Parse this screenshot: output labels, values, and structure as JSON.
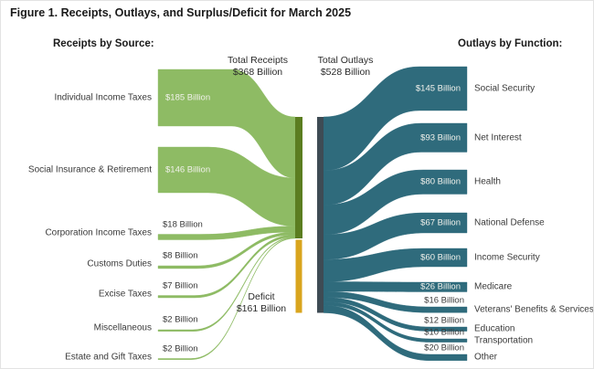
{
  "chart_data": {
    "type": "sankey",
    "title": "Figure 1. Receipts, Outlays, and Surplus/Deficit for March 2025",
    "left_header": "Receipts by Source:",
    "right_header": "Outlays by Function:",
    "totals": {
      "receipts": {
        "label": "Total Receipts",
        "value": 368,
        "value_label": "$368 Billion"
      },
      "outlays": {
        "label": "Total Outlays",
        "value": 528,
        "value_label": "$528 Billion"
      },
      "deficit": {
        "label": "Deficit",
        "value": 161,
        "value_label": "$161 Billion"
      }
    },
    "receipts_by_source": [
      {
        "name": "Individual Income Taxes",
        "value": 185,
        "value_label": "$185 Billion"
      },
      {
        "name": "Social Insurance & Retirement",
        "value": 146,
        "value_label": "$146 Billion"
      },
      {
        "name": "Corporation Income Taxes",
        "value": 18,
        "value_label": "$18 Billion"
      },
      {
        "name": "Customs Duties",
        "value": 8,
        "value_label": "$8 Billion"
      },
      {
        "name": "Excise Taxes",
        "value": 7,
        "value_label": "$7 Billion"
      },
      {
        "name": "Miscellaneous",
        "value": 2,
        "value_label": "$2 Billion"
      },
      {
        "name": "Estate and Gift Taxes",
        "value": 2,
        "value_label": "$2 Billion"
      }
    ],
    "outlays_by_function": [
      {
        "name": "Social Security",
        "value": 145,
        "value_label": "$145 Billion"
      },
      {
        "name": "Net Interest",
        "value": 93,
        "value_label": "$93 Billion"
      },
      {
        "name": "Health",
        "value": 80,
        "value_label": "$80 Billion"
      },
      {
        "name": "National Defense",
        "value": 67,
        "value_label": "$67 Billion"
      },
      {
        "name": "Income Security",
        "value": 60,
        "value_label": "$60 Billion"
      },
      {
        "name": "Medicare",
        "value": 26,
        "value_label": "$26 Billion"
      },
      {
        "name": "Veterans' Benefits & Services",
        "value": 16,
        "value_label": "$16 Billion"
      },
      {
        "name": "Education",
        "value": 12,
        "value_label": "$12 Billion"
      },
      {
        "name": "Transportation",
        "value": 10,
        "value_label": "$10 Billion"
      },
      {
        "name": "Other",
        "value": 20,
        "value_label": "$20 Billion"
      }
    ],
    "colors": {
      "receipt_flow": "#8ebb64",
      "receipts_bar": "#5b7d20",
      "deficit_bar": "#d9a51e",
      "outlay_flow": "#2f6b7c",
      "outlays_bar": "#3e4b54",
      "text": "#2b2b2b"
    }
  }
}
